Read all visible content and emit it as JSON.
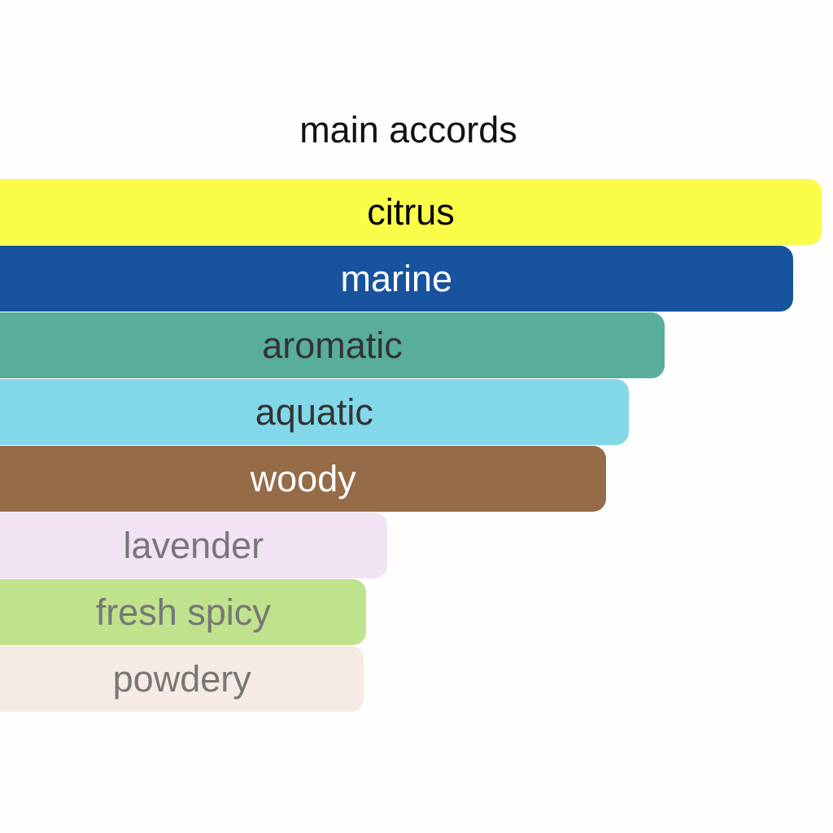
{
  "chart_data": {
    "type": "bar",
    "orientation": "horizontal",
    "title": "main accords",
    "categories": [
      "citrus",
      "marine",
      "aromatic",
      "aquatic",
      "woody",
      "lavender",
      "fresh spicy",
      "powdery"
    ],
    "values": [
      100,
      96.5,
      80.9,
      76.5,
      73.8,
      47.1,
      44.6,
      44.3
    ],
    "unit": "percent of strongest accord",
    "colors": [
      "#f9fc48",
      "#17549d",
      "#58ae9b",
      "#82d7e8",
      "#956b48",
      "#f1e2f4",
      "#bfe28c",
      "#f5ebe4"
    ],
    "label_colors": [
      "#000000",
      "#ffffff",
      "#333333",
      "#333333",
      "#ffffff",
      "#777777",
      "#777777",
      "#777777"
    ],
    "grid": false,
    "legend": "none"
  }
}
